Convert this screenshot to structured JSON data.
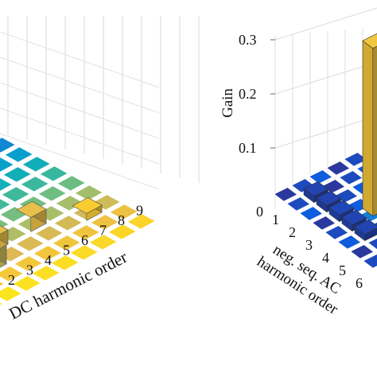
{
  "chart_data": [
    {
      "type": "bar3d",
      "panel": "left",
      "xlabel": "DC harmonic order",
      "x_ticks": [
        "2",
        "3",
        "4",
        "5",
        "6",
        "7",
        "8",
        "9"
      ],
      "colormap": "parula",
      "grid": true,
      "visible_bars": [
        {
          "dc": 1,
          "other": 3,
          "value": 0.06
        },
        {
          "dc": 3,
          "other": 2,
          "value": 0.03
        },
        {
          "dc": 4,
          "other": 3,
          "value": 0.02
        },
        {
          "dc": 6,
          "other": 3,
          "value": 0.02
        },
        {
          "dc": 8,
          "other": 2,
          "value": 0.01
        }
      ]
    },
    {
      "type": "bar3d",
      "panel": "right",
      "zlabel": "Gain",
      "ylabel_lines": [
        "neg. seq. AC",
        "harmonic order"
      ],
      "z_ticks": [
        "0.1",
        "0.2",
        "0.3"
      ],
      "z_zero": "0",
      "y_ticks": [
        "1",
        "2",
        "3",
        "4",
        "5",
        "6"
      ],
      "zlim": [
        0,
        0.3
      ],
      "colormap": "parula",
      "grid": true,
      "visible_bars": [
        {
          "ac": 2,
          "other": 1,
          "value": 0.005
        },
        {
          "ac": 3,
          "other": 1,
          "value": 0.003
        },
        {
          "ac": 4,
          "other": 1,
          "value": 0.012
        },
        {
          "ac": 5,
          "other": 1,
          "value": 0.008
        },
        {
          "ac": 6,
          "other": 1,
          "value": 0.006
        },
        {
          "ac": 7,
          "other": 1,
          "value": 0.31
        }
      ]
    }
  ]
}
